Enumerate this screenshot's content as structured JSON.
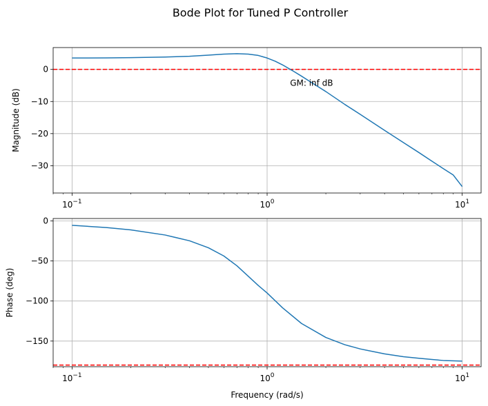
{
  "figure": {
    "title": "Bode Plot for Tuned P Controller"
  },
  "chart_data": [
    {
      "type": "line",
      "panel": "magnitude",
      "xscale": "log",
      "xlim": [
        0.08,
        12.5
      ],
      "ylim": [
        -38.5,
        6.8
      ],
      "xticks": [
        {
          "value": 0.1,
          "base": "10",
          "exp": "−1"
        },
        {
          "value": 1,
          "base": "10",
          "exp": "0"
        },
        {
          "value": 10,
          "base": "10",
          "exp": "1"
        }
      ],
      "yticks": [
        {
          "value": 0,
          "label": "0"
        },
        {
          "value": -10,
          "label": "−10"
        },
        {
          "value": -20,
          "label": "−20"
        },
        {
          "value": -30,
          "label": "−30"
        }
      ],
      "xlabel": "",
      "ylabel": "Magnitude (dB)",
      "grid": true,
      "series": [
        {
          "name": "magnitude",
          "color": "#1f77b4",
          "x": [
            0.1,
            0.15,
            0.2,
            0.3,
            0.4,
            0.5,
            0.6,
            0.7,
            0.8,
            0.9,
            1.0,
            1.1,
            1.2,
            1.35,
            1.5,
            1.7,
            2.0,
            2.5,
            3.0,
            4.0,
            5.0,
            6.0,
            7.0,
            8.0,
            9.0,
            10.0
          ],
          "values": [
            3.55,
            3.58,
            3.65,
            3.85,
            4.1,
            4.45,
            4.75,
            4.9,
            4.75,
            4.35,
            3.55,
            2.55,
            1.4,
            -0.4,
            -2.1,
            -4.2,
            -6.9,
            -10.9,
            -14.0,
            -19.0,
            -22.8,
            -25.9,
            -28.6,
            -30.9,
            -32.9,
            -36.5
          ]
        }
      ],
      "reference_line": {
        "y": 0,
        "color": "#ff0000",
        "style": "dashed"
      },
      "annotation": {
        "text": "GM: inf dB",
        "x": 1.3,
        "y": -4.3
      }
    },
    {
      "type": "line",
      "panel": "phase",
      "xscale": "log",
      "xlim": [
        0.08,
        12.5
      ],
      "ylim": [
        -182,
        3
      ],
      "xticks": [
        {
          "value": 0.1,
          "base": "10",
          "exp": "−1"
        },
        {
          "value": 1,
          "base": "10",
          "exp": "0"
        },
        {
          "value": 10,
          "base": "10",
          "exp": "1"
        }
      ],
      "yticks": [
        {
          "value": 0,
          "label": "0"
        },
        {
          "value": -50,
          "label": "−50"
        },
        {
          "value": -100,
          "label": "−100"
        },
        {
          "value": -150,
          "label": "−150"
        }
      ],
      "xlabel": "Frequency (rad/s)",
      "ylabel": "Phase (deg)",
      "grid": true,
      "series": [
        {
          "name": "phase",
          "color": "#1f77b4",
          "x": [
            0.1,
            0.15,
            0.2,
            0.3,
            0.4,
            0.5,
            0.6,
            0.7,
            0.8,
            0.9,
            1.0,
            1.2,
            1.5,
            2.0,
            2.5,
            3.0,
            4.0,
            5.0,
            6.0,
            7.0,
            8.0,
            10.0
          ],
          "values": [
            -5.5,
            -8.3,
            -11.2,
            -17.6,
            -24.8,
            -33.5,
            -43.8,
            -56.0,
            -69.0,
            -80.5,
            -90.0,
            -108.5,
            -128.0,
            -145.5,
            -154.5,
            -159.8,
            -166.0,
            -169.5,
            -171.5,
            -173.0,
            -174.2,
            -175.0
          ]
        }
      ],
      "reference_line": {
        "y": -180,
        "color": "#ff0000",
        "style": "dashed"
      }
    }
  ]
}
